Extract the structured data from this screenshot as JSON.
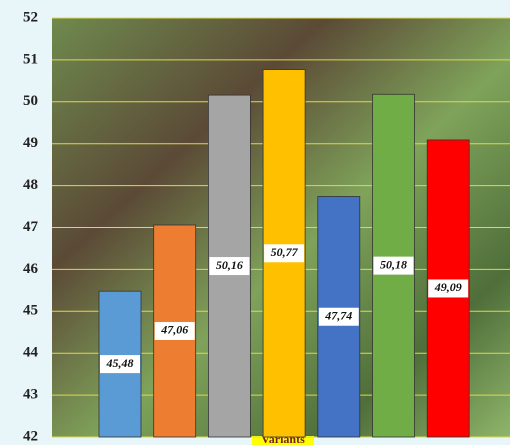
{
  "chart_data": {
    "type": "bar",
    "x_label": "Variants",
    "categories": [
      null,
      null,
      null,
      null,
      null,
      null,
      null
    ],
    "values": [
      45.48,
      47.06,
      50.16,
      50.77,
      47.74,
      50.18,
      49.09
    ],
    "value_labels": [
      "45,48",
      "47,06",
      "50,16",
      "50,77",
      "47,74",
      "50,18",
      "49,09"
    ],
    "colors": [
      "#5b9bd5",
      "#ed7d31",
      "#a5a5a5",
      "#ffc000",
      "#4472c4",
      "#70ad47",
      "#ff0000"
    ],
    "ylim": [
      42,
      52
    ],
    "yticks": [
      42,
      43,
      44,
      45,
      46,
      47,
      48,
      49,
      50,
      51,
      52
    ],
    "grid": true
  }
}
